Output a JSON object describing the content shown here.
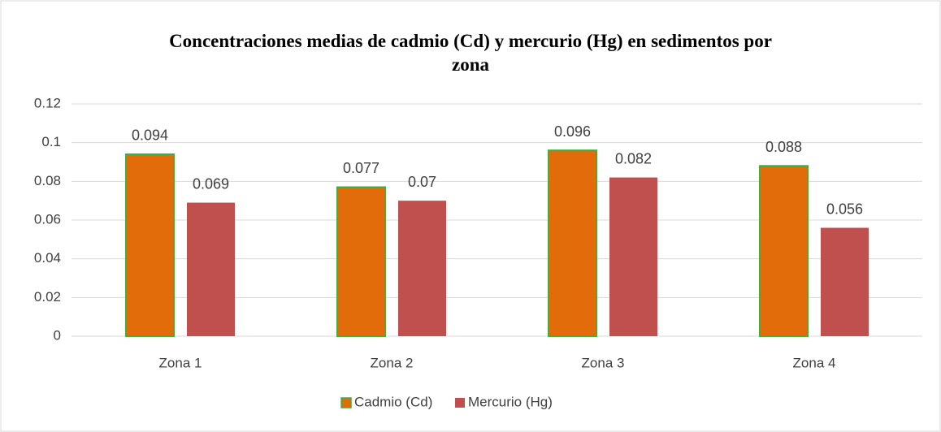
{
  "chart_data": {
    "type": "bar",
    "title": "Concentraciones medias de cadmio (Cd) y mercurio (Hg) en sedimentos por zona",
    "categories": [
      "Zona 1",
      "Zona 2",
      "Zona 3",
      "Zona 4"
    ],
    "series": [
      {
        "name": "Cadmio (Cd)",
        "color": "#e36c0a",
        "edgecolor": "#3cb043",
        "values": [
          0.094,
          0.077,
          0.096,
          0.088
        ]
      },
      {
        "name": "Mercurio (Hg)",
        "color": "#c0504d",
        "values": [
          0.069,
          0.07,
          0.082,
          0.056
        ]
      }
    ],
    "ylim": [
      0,
      0.12
    ],
    "yticks": [
      0,
      0.02,
      0.04,
      0.06,
      0.08,
      0.1,
      0.12
    ],
    "grid": true,
    "legend": "bottom"
  }
}
